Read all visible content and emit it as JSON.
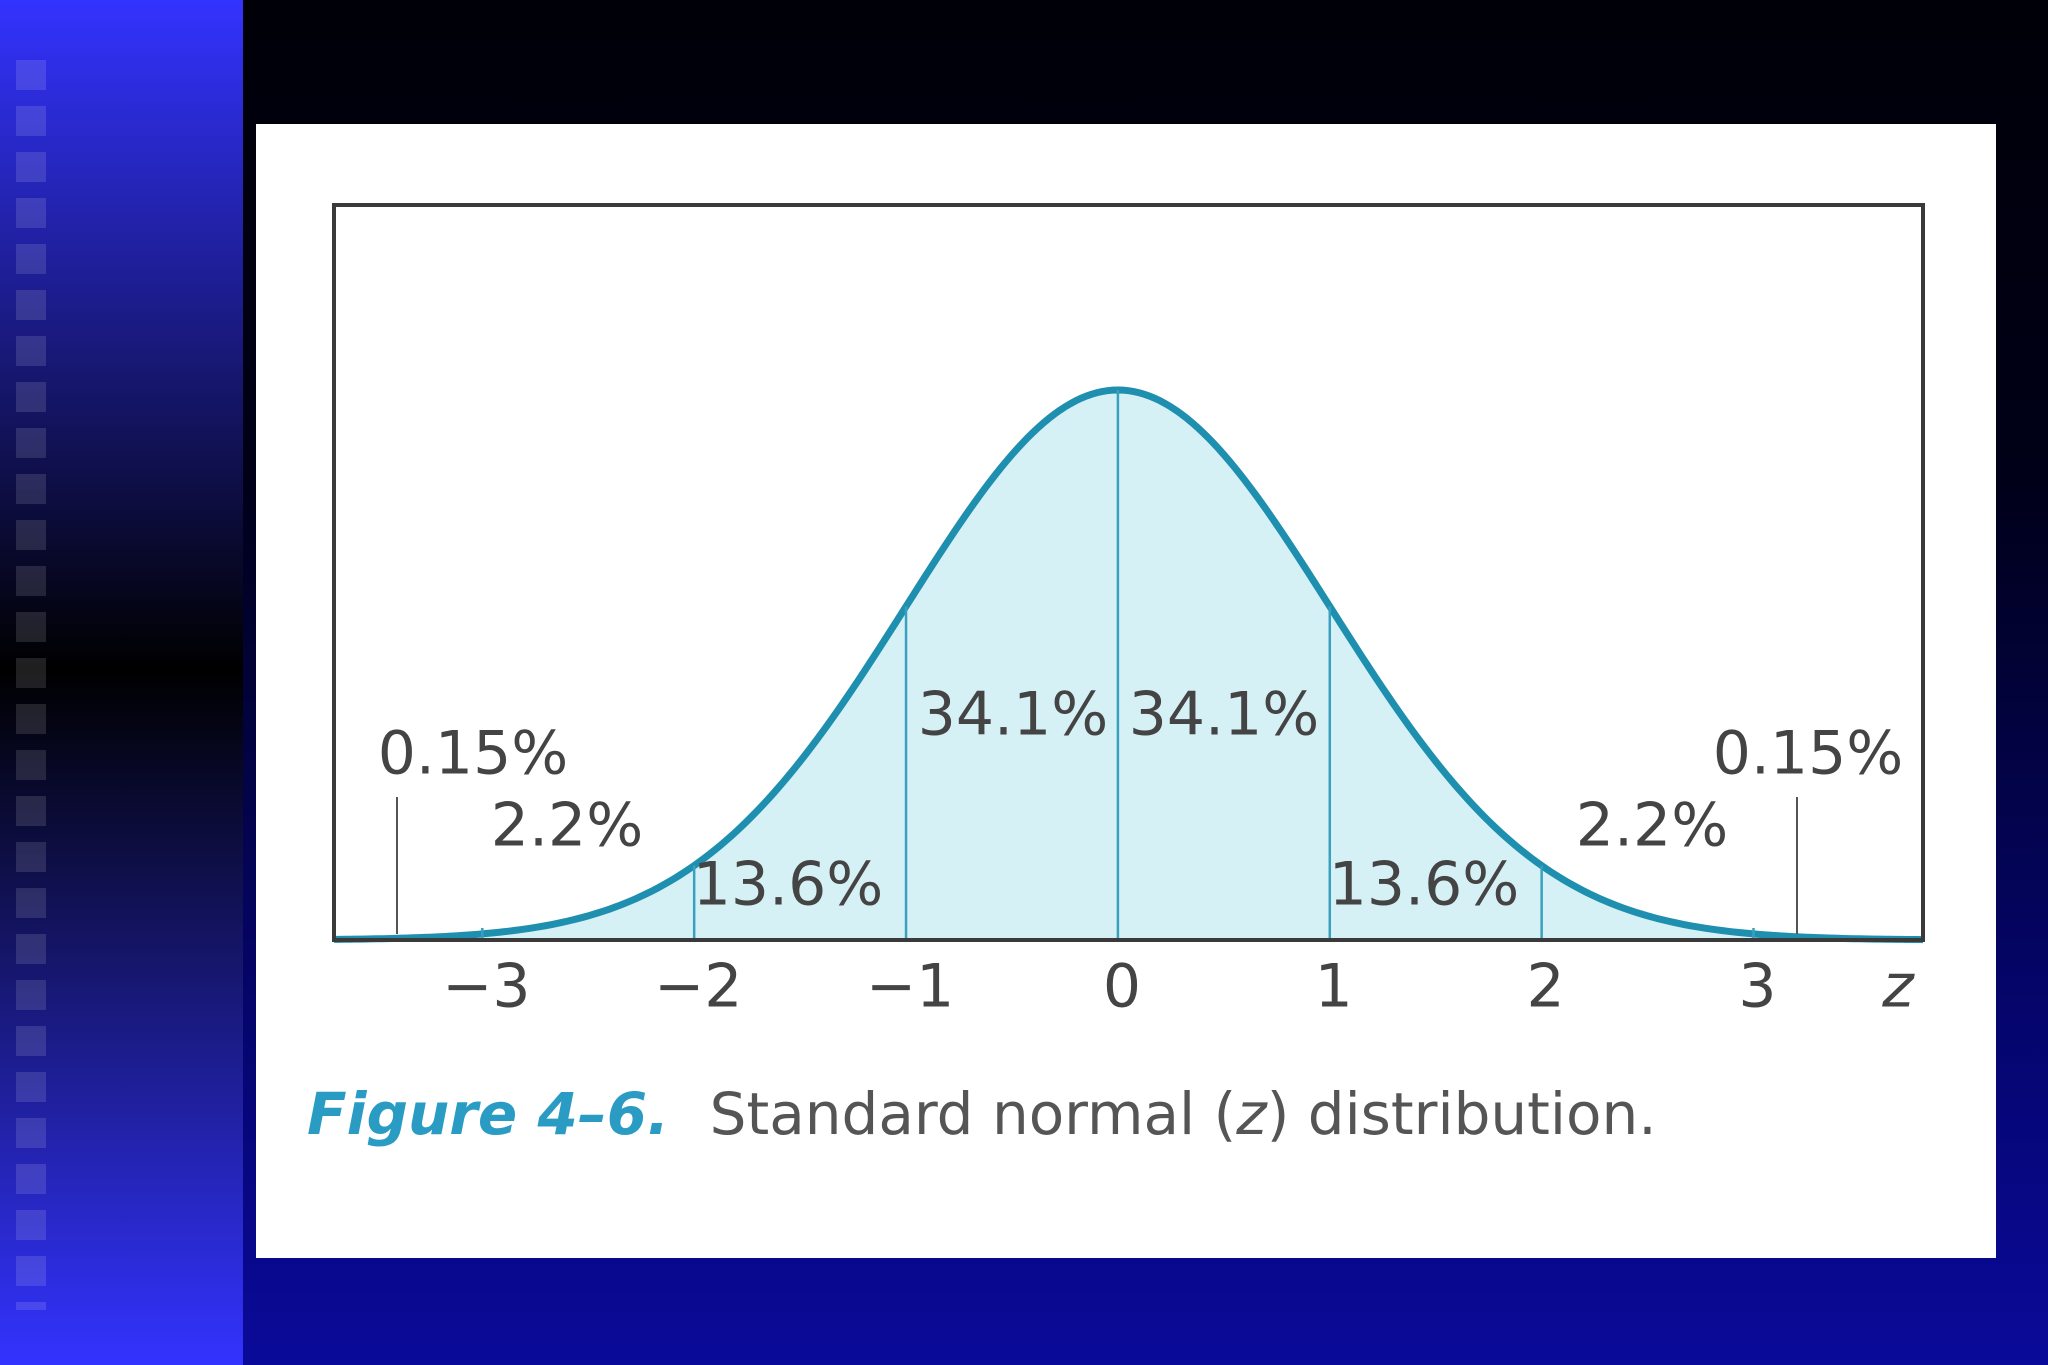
{
  "chart_data": {
    "type": "normal",
    "xlim": [
      -3.7,
      3.8
    ],
    "xticks": [
      {
        "value": -3,
        "label": "−3"
      },
      {
        "value": -2,
        "label": "−2"
      },
      {
        "value": -1,
        "label": "−1"
      },
      0,
      1,
      2,
      3
    ],
    "xlabel": "z",
    "regions": {
      "values": [
        0.15,
        2.2,
        13.6,
        34.1,
        34.1,
        13.6,
        2.2,
        0.15
      ],
      "value_labels": [
        "0.15%",
        "2.2%",
        "13.6%",
        "34.1%",
        "34.1%",
        "13.6%",
        "2.2%",
        "0.15%"
      ]
    },
    "fill_color": "#d6f1f6",
    "line_color": "#1f8fb0",
    "caption": {
      "label": "Figure 4–6.",
      "text": [
        "Standard normal (",
        "z",
        ") distribution."
      ]
    }
  }
}
